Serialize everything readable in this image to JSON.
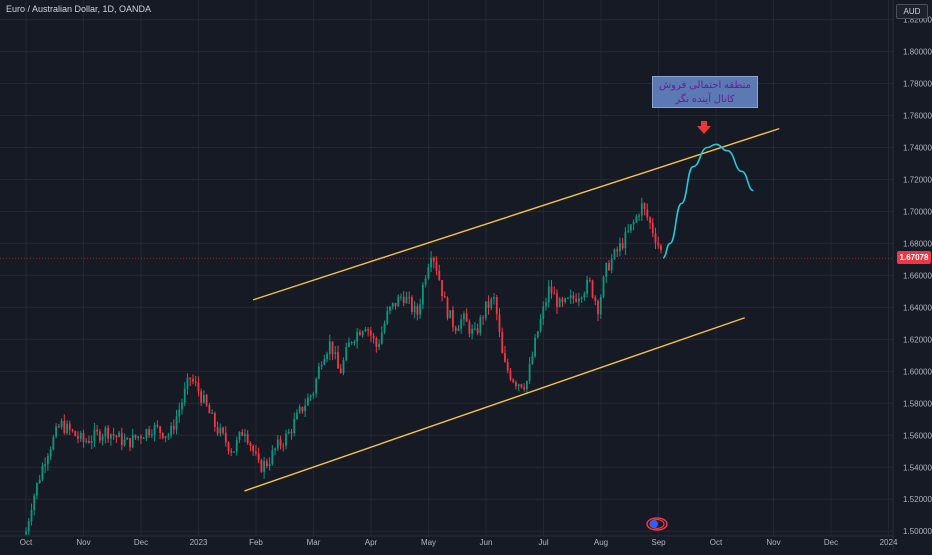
{
  "header": {
    "symbol_title": "Euro / Australian Dollar, 1D, OANDA",
    "currency": "AUD"
  },
  "last_price": {
    "label": "1.67078",
    "value": 1.67078,
    "color": "#f23645"
  },
  "annotation": {
    "line1": "منطقه احتمالی فروش",
    "line2": "کانال آینده نگر"
  },
  "colors": {
    "background": "#161a25",
    "grid": "#232734",
    "up_candle": "#089981",
    "down_candle": "#f23645",
    "channel": "#f5c242",
    "projection": "#26c6da",
    "arrow": "#e53935"
  },
  "icons": {
    "replay": "replay-icon",
    "arrow": "down-arrow-icon"
  },
  "chart_data": {
    "type": "candlestick",
    "title": "Euro / Australian Dollar, 1D, OANDA",
    "x_ticks": [
      "Oct",
      "Nov",
      "Dec",
      "2023",
      "Feb",
      "Mar",
      "Apr",
      "May",
      "Jun",
      "Jul",
      "Aug",
      "Sep",
      "Oct",
      "Nov",
      "Dec",
      "2024"
    ],
    "y_ticks": [
      "1.50000",
      "1.52000",
      "1.54000",
      "1.56000",
      "1.58000",
      "1.60000",
      "1.62000",
      "1.64000",
      "1.66000",
      "1.68000",
      "1.70000",
      "1.72000",
      "1.74000",
      "1.76000",
      "1.78000",
      "1.80000",
      "1.82000"
    ],
    "ylim": [
      1.497,
      1.826
    ],
    "grid": true,
    "anchors": [
      {
        "m": 0.0,
        "p": 1.5
      },
      {
        "m": 0.1,
        "p": 1.518
      },
      {
        "m": 0.35,
        "p": 1.548
      },
      {
        "m": 0.6,
        "p": 1.567
      },
      {
        "m": 1.0,
        "p": 1.556
      },
      {
        "m": 1.4,
        "p": 1.563
      },
      {
        "m": 1.75,
        "p": 1.555
      },
      {
        "m": 2.2,
        "p": 1.565
      },
      {
        "m": 2.5,
        "p": 1.56
      },
      {
        "m": 2.7,
        "p": 1.58
      },
      {
        "m": 2.85,
        "p": 1.596
      },
      {
        "m": 3.0,
        "p": 1.588
      },
      {
        "m": 3.3,
        "p": 1.565
      },
      {
        "m": 3.6,
        "p": 1.55
      },
      {
        "m": 3.8,
        "p": 1.565
      },
      {
        "m": 4.05,
        "p": 1.54
      },
      {
        "m": 4.2,
        "p": 1.543
      },
      {
        "m": 4.35,
        "p": 1.552
      },
      {
        "m": 4.55,
        "p": 1.56
      },
      {
        "m": 4.8,
        "p": 1.577
      },
      {
        "m": 5.0,
        "p": 1.588
      },
      {
        "m": 5.15,
        "p": 1.61
      },
      {
        "m": 5.3,
        "p": 1.618
      },
      {
        "m": 5.45,
        "p": 1.598
      },
      {
        "m": 5.65,
        "p": 1.62
      },
      {
        "m": 5.9,
        "p": 1.63
      },
      {
        "m": 6.1,
        "p": 1.615
      },
      {
        "m": 6.3,
        "p": 1.637
      },
      {
        "m": 6.55,
        "p": 1.648
      },
      {
        "m": 6.8,
        "p": 1.635
      },
      {
        "m": 6.95,
        "p": 1.662
      },
      {
        "m": 7.05,
        "p": 1.676
      },
      {
        "m": 7.15,
        "p": 1.664
      },
      {
        "m": 7.3,
        "p": 1.64
      },
      {
        "m": 7.45,
        "p": 1.628
      },
      {
        "m": 7.6,
        "p": 1.633
      },
      {
        "m": 7.8,
        "p": 1.622
      },
      {
        "m": 8.0,
        "p": 1.64
      },
      {
        "m": 8.15,
        "p": 1.645
      },
      {
        "m": 8.3,
        "p": 1.605
      },
      {
        "m": 8.5,
        "p": 1.594
      },
      {
        "m": 8.7,
        "p": 1.592
      },
      {
        "m": 8.9,
        "p": 1.625
      },
      {
        "m": 9.1,
        "p": 1.652
      },
      {
        "m": 9.3,
        "p": 1.64
      },
      {
        "m": 9.5,
        "p": 1.645
      },
      {
        "m": 9.65,
        "p": 1.65
      },
      {
        "m": 9.8,
        "p": 1.655
      },
      {
        "m": 9.95,
        "p": 1.64
      },
      {
        "m": 10.1,
        "p": 1.665
      },
      {
        "m": 10.3,
        "p": 1.676
      },
      {
        "m": 10.45,
        "p": 1.685
      },
      {
        "m": 10.6,
        "p": 1.695
      },
      {
        "m": 10.7,
        "p": 1.704
      },
      {
        "m": 10.82,
        "p": 1.695
      },
      {
        "m": 10.95,
        "p": 1.684
      },
      {
        "m": 11.08,
        "p": 1.671
      }
    ],
    "channel_upper": [
      {
        "m": 3.95,
        "p": 1.6447
      },
      {
        "m": 13.1,
        "p": 1.7518
      }
    ],
    "channel_lower": [
      {
        "m": 3.8,
        "p": 1.5252
      },
      {
        "m": 12.5,
        "p": 1.6335
      }
    ],
    "projection": [
      {
        "m": 11.08,
        "p": 1.671
      },
      {
        "m": 11.2,
        "p": 1.68
      },
      {
        "m": 11.4,
        "p": 1.705
      },
      {
        "m": 11.6,
        "p": 1.728
      },
      {
        "m": 11.85,
        "p": 1.74
      },
      {
        "m": 12.0,
        "p": 1.742
      },
      {
        "m": 12.2,
        "p": 1.738
      },
      {
        "m": 12.45,
        "p": 1.725
      },
      {
        "m": 12.65,
        "p": 1.713
      }
    ]
  }
}
